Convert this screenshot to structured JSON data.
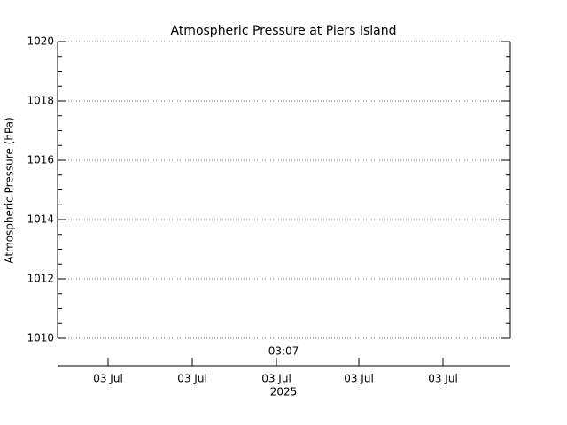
{
  "chart_data": {
    "type": "line",
    "title": "Atmospheric Pressure at Piers Island",
    "ylabel": "Atmospheric Pressure (hPa)",
    "series": [],
    "ylim": [
      1010,
      1020
    ],
    "yticks": [
      1010,
      1012,
      1014,
      1016,
      1018,
      1020
    ],
    "yticks_minor": [
      1010.5,
      1011,
      1011.5,
      1012.5,
      1013,
      1013.5,
      1014.5,
      1015,
      1015.5,
      1016.5,
      1017,
      1017.5,
      1018.5,
      1019,
      1019.5
    ],
    "grid": true,
    "x_time_label": "03:07",
    "xtick_labels": [
      "03 Jul",
      "03 Jul",
      "03 Jul",
      "03 Jul",
      "03 Jul"
    ],
    "x_year_label": "2025"
  }
}
